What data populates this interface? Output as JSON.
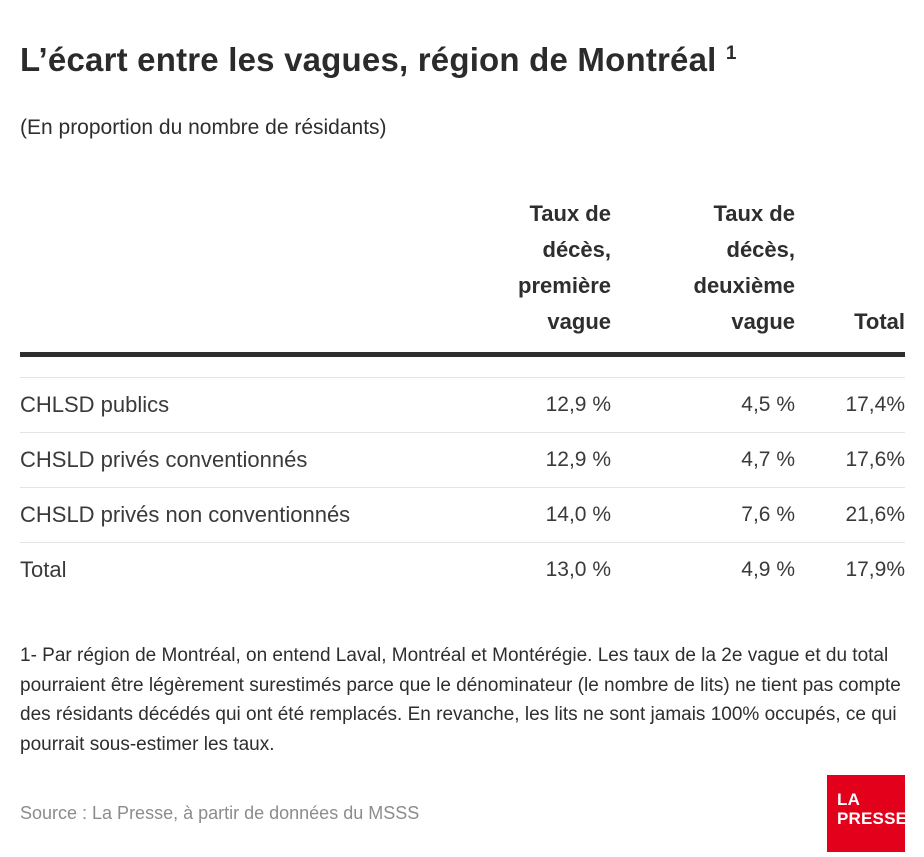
{
  "header": {
    "title": "L’écart entre les vagues, région de Montréal",
    "title_superscript": "1",
    "subtitle": "(En proportion du nombre de résidants)"
  },
  "table": {
    "col_headers": {
      "wave1": "Taux de\ndécès,\npremière\nvague",
      "wave2": "Taux de\ndécès,\ndeuxième\nvague",
      "total": "Total"
    },
    "rows": [
      {
        "label": "CHLSD publics",
        "wave1": "12,9 %",
        "wave2": "4,5 %",
        "total": "17,4%"
      },
      {
        "label": "CHSLD privés conventionnés",
        "wave1": "12,9 %",
        "wave2": "4,7 %",
        "total": "17,6%"
      },
      {
        "label": "CHSLD privés non conventionnés",
        "wave1": "14,0 %",
        "wave2": "7,6 %",
        "total": "21,6%"
      },
      {
        "label": "Total",
        "wave1": "13,0 %",
        "wave2": "4,9 %",
        "total": "17,9%"
      }
    ]
  },
  "footnote": "1- Par région de Montréal, on entend Laval, Montréal et Montérégie. Les taux de la 2e vague et du total pourraient être légèrement surestimés parce que le dénominateur (le nombre de lits) ne tient pas compte des résidants décédés qui ont été remplacés. En revanche, les lits ne sont jamais 100% occupés, ce qui pourrait sous-estimer les taux.",
  "source": "Source : La Presse, à partir de données du MSSS",
  "logo": {
    "line1": "LA",
    "line2": "PRESSE"
  },
  "colors": {
    "accent_red": "#e2001a",
    "rule_dark": "#2e2e2e",
    "rule_light": "#e4e4e4",
    "text_dark": "#2b2b2b",
    "text_gray": "#8c8c8c"
  },
  "chart_data": {
    "type": "table",
    "title": "L’écart entre les vagues, région de Montréal",
    "subtitle": "(En proportion du nombre de résidants)",
    "columns": [
      "Taux de décès, première vague",
      "Taux de décès, deuxième vague",
      "Total"
    ],
    "unit": "%",
    "rows": [
      {
        "label": "CHLSD publics",
        "values": [
          12.9,
          4.5,
          17.4
        ]
      },
      {
        "label": "CHSLD privés conventionnés",
        "values": [
          12.9,
          4.7,
          17.6
        ]
      },
      {
        "label": "CHSLD privés non conventionnés",
        "values": [
          14.0,
          7.6,
          21.6
        ]
      },
      {
        "label": "Total",
        "values": [
          13.0,
          4.9,
          17.9
        ]
      }
    ]
  }
}
